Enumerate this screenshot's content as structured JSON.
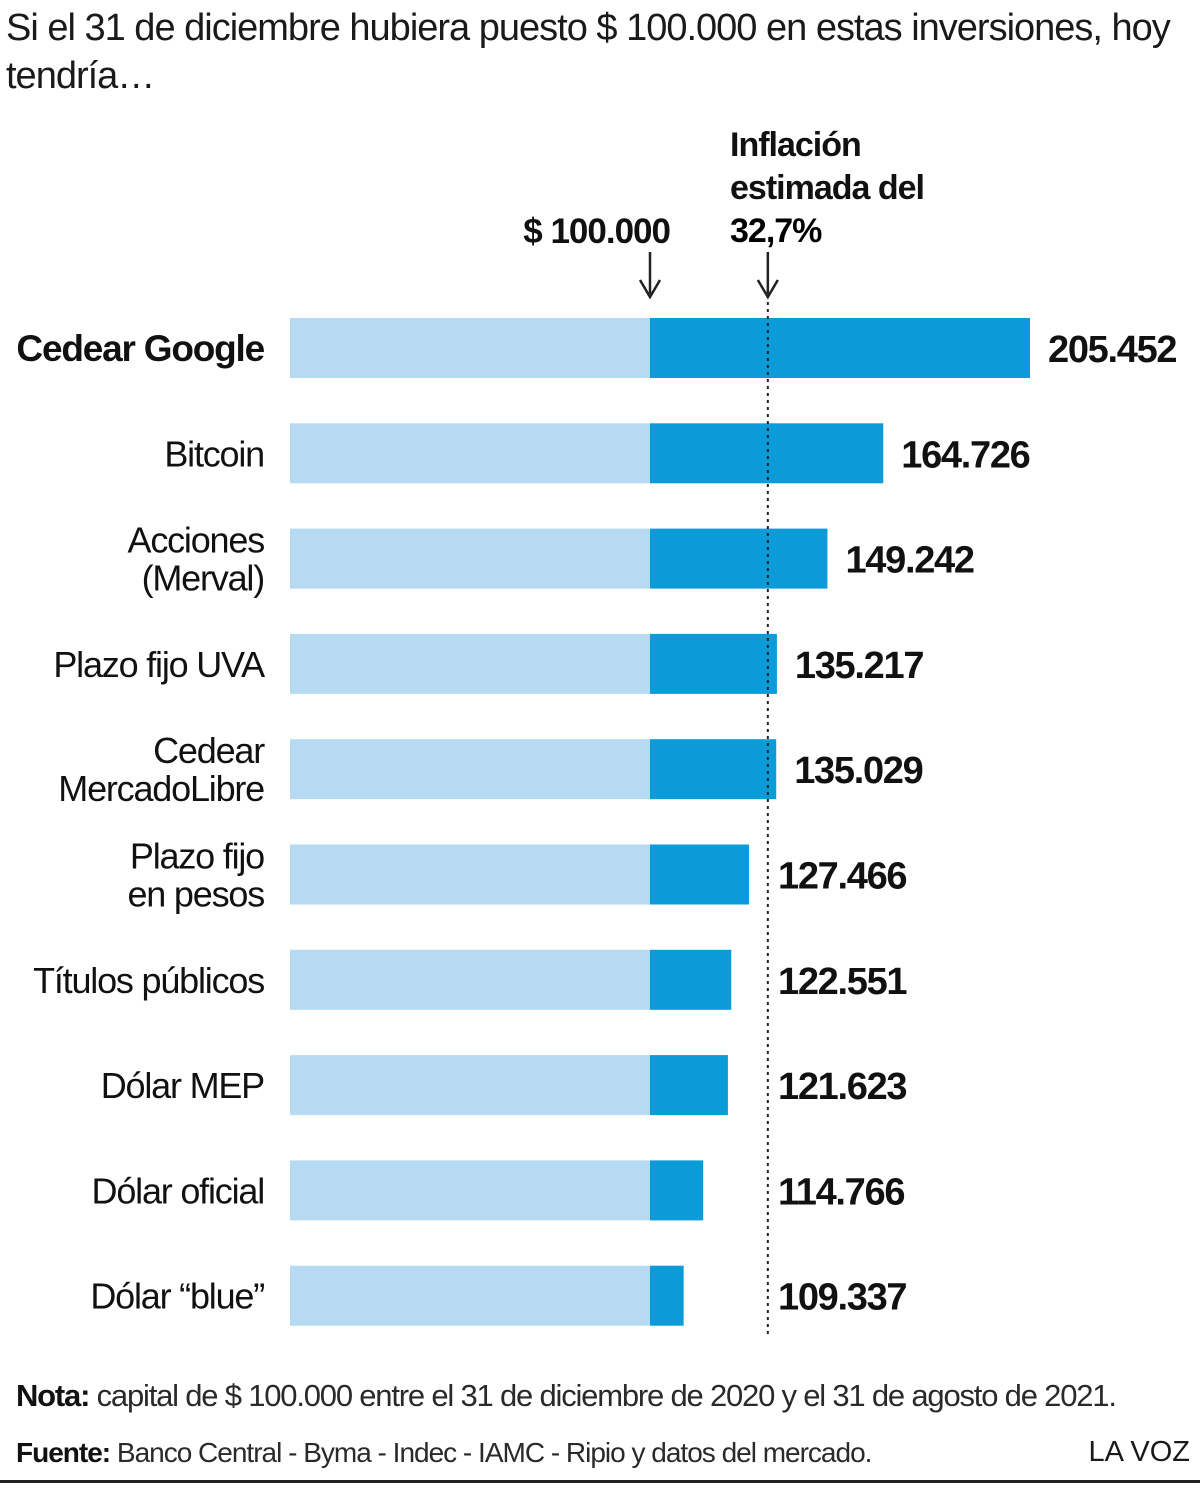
{
  "title": "Si el 31 de diciembre hubiera puesto $ 100.000 en estas inversiones, hoy tendría…",
  "chart_data": {
    "type": "bar",
    "orientation": "horizontal",
    "categories": [
      [
        "Cedear Google"
      ],
      [
        "Bitcoin"
      ],
      [
        "Acciones",
        "(Merval)"
      ],
      [
        "Plazo fijo UVA"
      ],
      [
        "Cedear",
        "MercadoLibre"
      ],
      [
        "Plazo fijo",
        "en pesos"
      ],
      [
        "Títulos públicos"
      ],
      [
        "Dólar MEP"
      ],
      [
        "Dólar oficial"
      ],
      [
        "Dólar “blue”"
      ]
    ],
    "values": [
      205452,
      164726,
      149242,
      135217,
      135029,
      127466,
      122551,
      121623,
      114766,
      109337
    ],
    "value_labels": [
      "205.452",
      "164.726",
      "149.242",
      "135.217",
      "135.029",
      "127.466",
      "122.551",
      "121.623",
      "114.766",
      "109.337"
    ],
    "highlight_index": 0,
    "baseline": {
      "value": 100000,
      "label": "$ 100.000"
    },
    "reference_line": {
      "value": 132700,
      "label_lines": [
        "Inflación",
        "estimada del"
      ],
      "label_bold": "32,7%"
    },
    "colors": {
      "base": "#b7daf3",
      "gain": "#0b9bd8",
      "text": "#111111",
      "line": "#222222"
    }
  },
  "nota": {
    "label": "Nota:",
    "text": " capital de $ 100.000 entre el 31 de diciembre de 2020 y el 31 de agosto de 2021."
  },
  "fuente": {
    "label": "Fuente:",
    "text": " Banco Central - Byma - Indec - IAMC - Ripio y datos del mercado."
  },
  "brand": "LA VOZ"
}
